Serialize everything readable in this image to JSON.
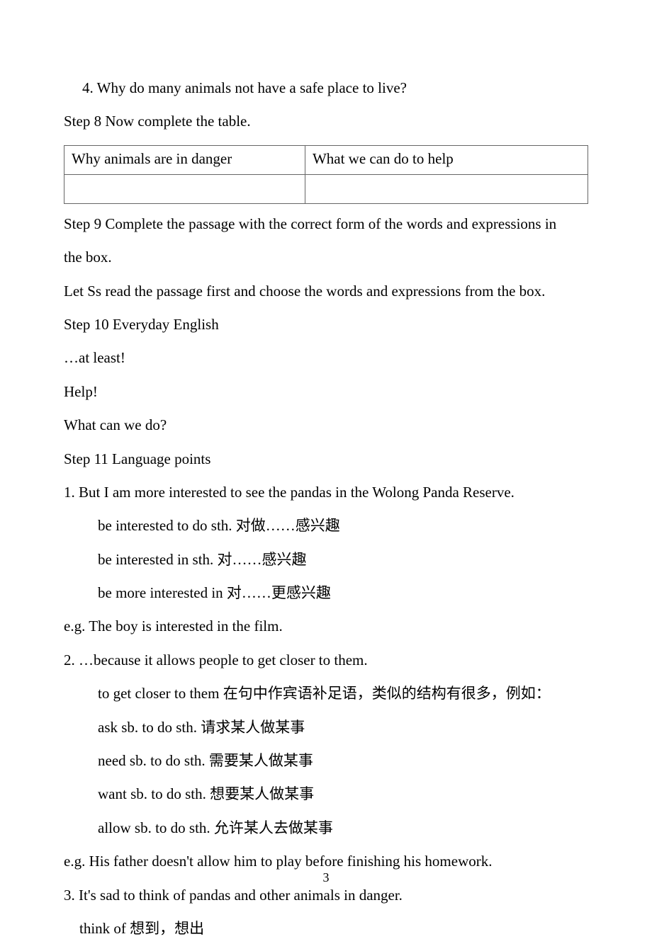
{
  "doc": {
    "line_q4": "4. Why do many animals not have a safe place to live?",
    "step8_title": "Step 8 Now complete the table.",
    "table": {
      "col1": "Why animals are in danger",
      "col2": "What we can do to help"
    },
    "step9_line1": "Step 9 Complete the passage with the correct form of the words and expressions in",
    "step9_line2": "the box.",
    "step9_note": "Let Ss read the passage first and choose the words and expressions from the box.",
    "step10_title": "Step 10 Everyday English",
    "everyday": {
      "l1": "…at least!",
      "l2": "Help!",
      "l3": "What can we do?"
    },
    "step11_title": "Step 11 Language points",
    "point1": {
      "main": "1. But I am more interested to see the pandas in the Wolong Panda Reserve.",
      "a": "be interested to do sth.  对做……感兴趣",
      "b": "be interested in sth.  对……感兴趣",
      "c": "be more interested in  对……更感兴趣",
      "eg": "e.g. The boy is interested in the film."
    },
    "point2": {
      "main": "2. …because it allows people to get closer to them.",
      "a": "to get closer to them 在句中作宾语补足语，类似的结构有很多，例如：",
      "b": "ask sb. to do sth.  请求某人做某事",
      "c": "need sb. to do sth.  需要某人做某事",
      "d": "want sb. to do sth.  想要某人做某事",
      "e": "allow sb. to do sth.  允许某人去做某事",
      "eg": "e.g. His father doesn't allow him to play before finishing his homework."
    },
    "point3": {
      "main": "3. It's sad to think of pandas and other animals in danger.",
      "a": "think of    想到，想出"
    },
    "page_number": "3"
  }
}
